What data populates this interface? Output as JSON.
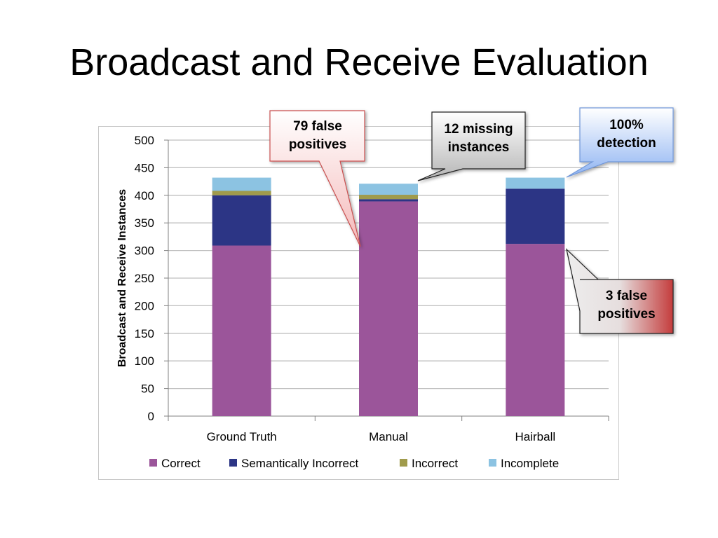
{
  "slide": {
    "title": "Broadcast and Receive Evaluation"
  },
  "chart_data": {
    "type": "bar",
    "stacked": true,
    "categories": [
      "Ground Truth",
      "Manual",
      "Hairball"
    ],
    "series": [
      {
        "name": "Correct",
        "color": "#9b559a",
        "values": [
          309,
          389,
          312
        ]
      },
      {
        "name": "Semantically Incorrect",
        "color": "#2c3585",
        "values": [
          91,
          4,
          100
        ]
      },
      {
        "name": "Incorrect",
        "color": "#a09b4c",
        "values": [
          8,
          8,
          0
        ]
      },
      {
        "name": "Incomplete",
        "color": "#8cc3e2",
        "values": [
          24,
          20,
          20
        ]
      }
    ],
    "ylabel": "Broadcast and Receive Instances",
    "ylim": [
      0,
      500
    ],
    "yticks": [
      0,
      50,
      100,
      150,
      200,
      250,
      300,
      350,
      400,
      450,
      500
    ],
    "grid": true,
    "legend_position": "bottom"
  },
  "annotations": [
    {
      "id": "false-positives-manual",
      "text": [
        "79 false",
        "positives"
      ],
      "fill": "pink-red"
    },
    {
      "id": "missing-instances",
      "text": [
        "12 missing",
        "instances"
      ],
      "fill": "gray"
    },
    {
      "id": "detection",
      "text": [
        "100%",
        "detection"
      ],
      "fill": "blue"
    },
    {
      "id": "false-positives-hairball",
      "text": [
        "3 false",
        "positives"
      ],
      "fill": "gray-red"
    }
  ]
}
